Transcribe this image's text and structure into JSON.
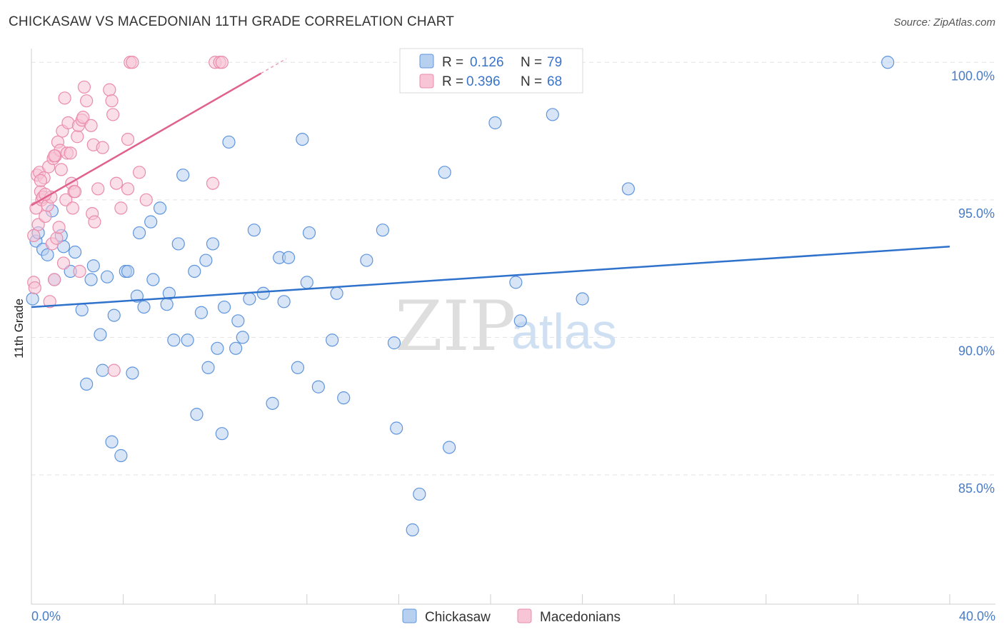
{
  "title": "CHICKASAW VS MACEDONIAN 11TH GRADE CORRELATION CHART",
  "source": "Source: ZipAtlas.com",
  "watermark": {
    "part1": "ZIP",
    "part2": "atlas"
  },
  "legend": {
    "r_label": "R =",
    "n_label": "N =",
    "rows": [
      {
        "r": "0.126",
        "n": "79"
      },
      {
        "r": "0.396",
        "n": "68"
      }
    ]
  },
  "colors": {
    "chickasaw_fill": "#b8d0f0",
    "chickasaw_stroke": "#5f95dd",
    "chickasaw_line": "#2f72cc",
    "macedonian_fill": "#f8c5d6",
    "macedonian_stroke": "#ea8cac",
    "macedonian_line": "#e0618e",
    "tick_label": "#4a7cc5",
    "grid": "#e3e3e3"
  },
  "chart_data": {
    "type": "scatter",
    "xlabel": "",
    "ylabel": "11th Grade",
    "xlim": [
      0,
      40
    ],
    "ylim": [
      80.3,
      100.5
    ],
    "x_tick_labels": [
      "0.0%",
      "40.0%"
    ],
    "y_ticks": [
      {
        "value": 85,
        "label": "85.0%"
      },
      {
        "value": 90,
        "label": "90.0%"
      },
      {
        "value": 95,
        "label": "95.0%"
      },
      {
        "value": 100,
        "label": "100.0%"
      }
    ],
    "grid": true,
    "series": [
      {
        "name": "Chickasaw",
        "trend": {
          "x0": 0,
          "y0": 91.1,
          "x1": 40,
          "y1": 93.3
        },
        "points": [
          [
            0.05,
            91.4
          ],
          [
            0.2,
            93.5
          ],
          [
            0.3,
            93.8
          ],
          [
            0.5,
            93.2
          ],
          [
            0.7,
            93.0
          ],
          [
            0.9,
            94.6
          ],
          [
            1.0,
            92.1
          ],
          [
            1.3,
            93.7
          ],
          [
            1.4,
            93.3
          ],
          [
            1.7,
            92.4
          ],
          [
            1.9,
            93.1
          ],
          [
            2.2,
            91.0
          ],
          [
            2.4,
            88.3
          ],
          [
            2.6,
            92.1
          ],
          [
            2.7,
            92.6
          ],
          [
            3.0,
            90.1
          ],
          [
            3.1,
            88.8
          ],
          [
            3.3,
            92.2
          ],
          [
            3.5,
            86.2
          ],
          [
            3.6,
            90.8
          ],
          [
            3.9,
            85.7
          ],
          [
            4.1,
            92.4
          ],
          [
            4.2,
            92.4
          ],
          [
            4.4,
            88.7
          ],
          [
            4.6,
            91.5
          ],
          [
            4.7,
            93.8
          ],
          [
            4.9,
            91.1
          ],
          [
            5.2,
            94.2
          ],
          [
            5.3,
            92.1
          ],
          [
            5.6,
            94.7
          ],
          [
            6.0,
            91.6
          ],
          [
            5.9,
            91.2
          ],
          [
            6.2,
            89.9
          ],
          [
            6.4,
            93.4
          ],
          [
            6.6,
            95.9
          ],
          [
            6.8,
            89.9
          ],
          [
            7.1,
            92.4
          ],
          [
            7.2,
            87.2
          ],
          [
            7.4,
            90.9
          ],
          [
            7.6,
            92.8
          ],
          [
            7.7,
            88.9
          ],
          [
            7.9,
            93.4
          ],
          [
            8.1,
            89.6
          ],
          [
            8.3,
            86.5
          ],
          [
            8.4,
            91.1
          ],
          [
            8.6,
            97.1
          ],
          [
            8.9,
            89.6
          ],
          [
            9.0,
            90.6
          ],
          [
            9.2,
            90.0
          ],
          [
            9.5,
            91.4
          ],
          [
            9.7,
            93.9
          ],
          [
            10.1,
            91.6
          ],
          [
            10.5,
            87.6
          ],
          [
            10.8,
            92.9
          ],
          [
            11.0,
            91.3
          ],
          [
            11.2,
            92.9
          ],
          [
            11.6,
            88.9
          ],
          [
            11.8,
            97.2
          ],
          [
            12.0,
            92.0
          ],
          [
            12.1,
            93.8
          ],
          [
            12.5,
            88.2
          ],
          [
            13.1,
            89.9
          ],
          [
            13.3,
            91.6
          ],
          [
            13.6,
            87.8
          ],
          [
            14.6,
            92.8
          ],
          [
            15.3,
            93.9
          ],
          [
            15.8,
            89.8
          ],
          [
            15.9,
            86.7
          ],
          [
            16.9,
            84.3
          ],
          [
            16.6,
            83.0
          ],
          [
            18.0,
            96.0
          ],
          [
            18.2,
            86.0
          ],
          [
            20.2,
            97.8
          ],
          [
            21.1,
            92.0
          ],
          [
            21.3,
            90.6
          ],
          [
            22.7,
            98.1
          ],
          [
            24.0,
            91.4
          ],
          [
            26.0,
            95.4
          ],
          [
            37.3,
            100.0
          ]
        ]
      },
      {
        "name": "Macedonians",
        "trend": {
          "x0": 0,
          "y0": 94.8,
          "x1": 10,
          "y1": 99.6
        },
        "points": [
          [
            0.1,
            92.0
          ],
          [
            0.15,
            91.8
          ],
          [
            0.2,
            94.7
          ],
          [
            0.25,
            95.9
          ],
          [
            0.3,
            94.1
          ],
          [
            0.35,
            96.0
          ],
          [
            0.4,
            95.3
          ],
          [
            0.45,
            95.0
          ],
          [
            0.5,
            95.1
          ],
          [
            0.55,
            95.8
          ],
          [
            0.6,
            94.4
          ],
          [
            0.7,
            94.8
          ],
          [
            0.75,
            96.2
          ],
          [
            0.8,
            91.3
          ],
          [
            0.85,
            95.1
          ],
          [
            0.9,
            93.4
          ],
          [
            0.95,
            96.5
          ],
          [
            1.0,
            92.1
          ],
          [
            1.05,
            96.6
          ],
          [
            1.1,
            93.6
          ],
          [
            1.15,
            97.1
          ],
          [
            1.2,
            94.0
          ],
          [
            1.25,
            96.8
          ],
          [
            1.3,
            96.1
          ],
          [
            1.35,
            97.5
          ],
          [
            1.4,
            92.7
          ],
          [
            1.45,
            98.7
          ],
          [
            1.5,
            95.0
          ],
          [
            1.55,
            96.7
          ],
          [
            1.6,
            97.8
          ],
          [
            1.7,
            96.7
          ],
          [
            1.75,
            95.6
          ],
          [
            1.8,
            94.7
          ],
          [
            1.85,
            95.3
          ],
          [
            1.9,
            95.3
          ],
          [
            2.0,
            97.3
          ],
          [
            2.05,
            97.7
          ],
          [
            2.1,
            92.4
          ],
          [
            2.2,
            97.9
          ],
          [
            2.25,
            98.0
          ],
          [
            2.3,
            99.1
          ],
          [
            2.4,
            98.6
          ],
          [
            2.6,
            97.7
          ],
          [
            2.65,
            94.5
          ],
          [
            2.7,
            97.0
          ],
          [
            2.75,
            94.2
          ],
          [
            2.9,
            95.4
          ],
          [
            3.1,
            96.9
          ],
          [
            3.4,
            99.0
          ],
          [
            3.5,
            98.6
          ],
          [
            3.55,
            98.1
          ],
          [
            3.6,
            88.8
          ],
          [
            3.7,
            95.6
          ],
          [
            3.9,
            94.7
          ],
          [
            4.2,
            95.4
          ],
          [
            4.2,
            97.2
          ],
          [
            4.3,
            100.0
          ],
          [
            4.4,
            100.0
          ],
          [
            4.7,
            96.0
          ],
          [
            5.0,
            95.0
          ],
          [
            7.9,
            95.6
          ],
          [
            8.0,
            100.0
          ],
          [
            8.2,
            100.0
          ],
          [
            8.3,
            100.0
          ],
          [
            0.1,
            93.7
          ],
          [
            0.6,
            95.2
          ],
          [
            1.0,
            96.6
          ],
          [
            0.4,
            95.7
          ]
        ]
      }
    ]
  }
}
